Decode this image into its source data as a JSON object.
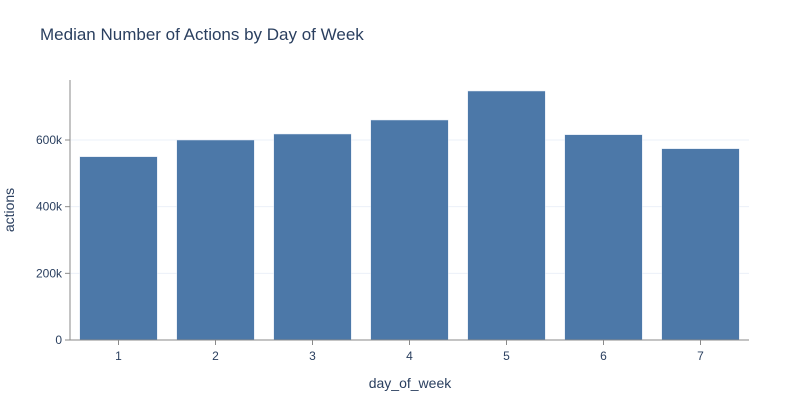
{
  "chart_data": {
    "type": "bar",
    "title": "Median Number of Actions by Day of Week",
    "xlabel": "day_of_week",
    "ylabel": "actions",
    "categories": [
      "1",
      "2",
      "3",
      "4",
      "5",
      "6",
      "7"
    ],
    "values": [
      550000,
      600000,
      618000,
      660000,
      747000,
      616000,
      574000
    ],
    "ylim": [
      0,
      780000
    ],
    "yticks": [
      0,
      200000,
      400000,
      600000
    ],
    "ytick_labels": [
      "0",
      "200k",
      "400k",
      "600k"
    ],
    "grid": true,
    "legend": "none",
    "bar_color": "#4c78a8",
    "grid_color": "#ebf0f8",
    "axis_color": "#8a8a8a",
    "text_color": "#2a3f5f"
  }
}
